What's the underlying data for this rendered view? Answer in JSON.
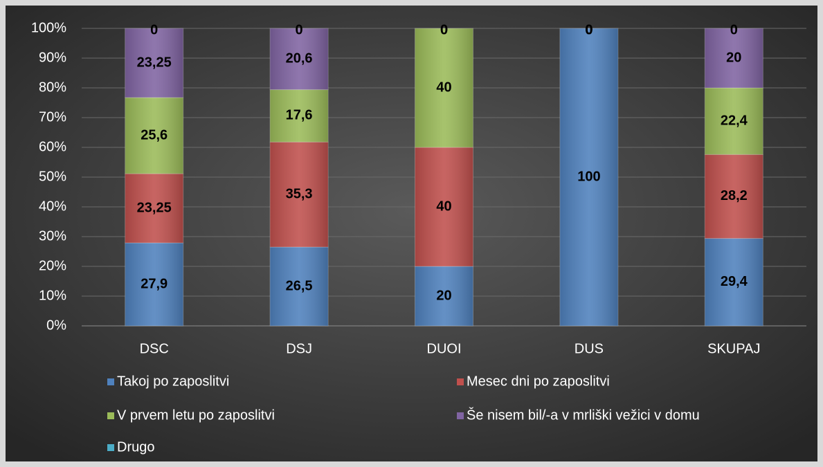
{
  "chart_data": {
    "type": "stacked_bar",
    "categories": [
      "DSC",
      "DSJ",
      "DUOI",
      "DUS",
      "SKUPAJ"
    ],
    "series": [
      {
        "name": "Takoj po zaposlitvi",
        "color": "#4f81bd",
        "values": [
          27.9,
          26.5,
          20,
          100,
          29.4
        ],
        "value_labels": [
          "27,9",
          "26,5",
          "20",
          "100",
          "29,4"
        ]
      },
      {
        "name": "Mesec dni po zaposlitvi",
        "color": "#c0504d",
        "values": [
          23.25,
          35.3,
          40,
          0,
          28.2
        ],
        "value_labels": [
          "23,25",
          "35,3",
          "40",
          "0",
          "28,2"
        ]
      },
      {
        "name": "V prvem letu po zaposlitvi",
        "color": "#9bbb59",
        "values": [
          25.6,
          17.6,
          40,
          0,
          22.4
        ],
        "value_labels": [
          "25,6",
          "17,6",
          "40",
          "0",
          "22,4"
        ]
      },
      {
        "name": "Še nisem bil/-a v mrliški vežici v domu",
        "color": "#8064a2",
        "values": [
          23.25,
          20.6,
          0,
          0,
          20
        ],
        "value_labels": [
          "23,25",
          "20,6",
          "0",
          "0",
          "20"
        ]
      },
      {
        "name": "Drugo",
        "color": "#4bacc6",
        "values": [
          0,
          0,
          0,
          0,
          0
        ],
        "value_labels": [
          "0",
          "0",
          "0",
          "0",
          "0"
        ]
      }
    ],
    "ylim": [
      0,
      100
    ],
    "yticks": [
      {
        "value": 0,
        "label": "0%"
      },
      {
        "value": 10,
        "label": "10%"
      },
      {
        "value": 20,
        "label": "20%"
      },
      {
        "value": 30,
        "label": "30%"
      },
      {
        "value": 40,
        "label": "40%"
      },
      {
        "value": 50,
        "label": "50%"
      },
      {
        "value": 60,
        "label": "60%"
      },
      {
        "value": 70,
        "label": "70%"
      },
      {
        "value": 80,
        "label": "80%"
      },
      {
        "value": 90,
        "label": "90%"
      },
      {
        "value": 100,
        "label": "100%"
      }
    ],
    "grid": true
  }
}
